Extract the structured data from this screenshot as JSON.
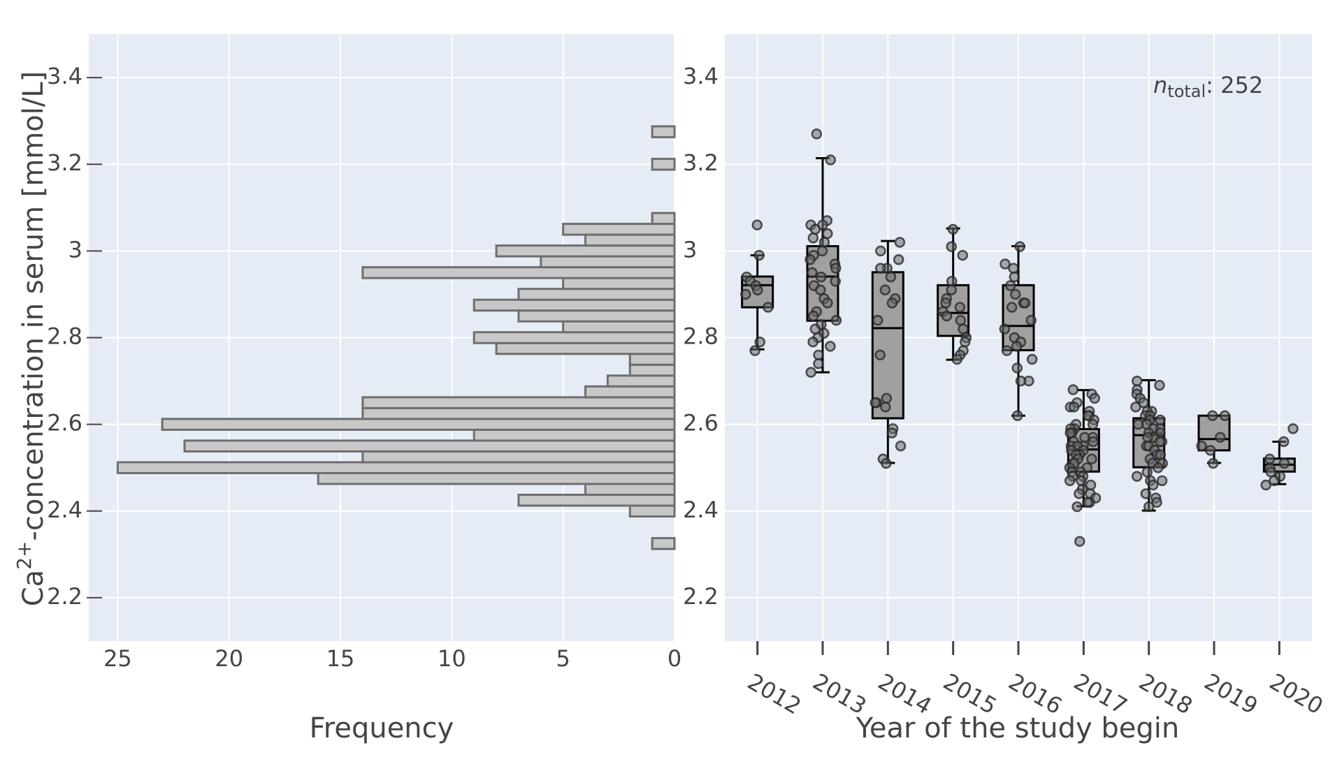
{
  "chart_data": [
    {
      "type": "histogram",
      "orientation": "horizontal",
      "x_label": "Frequency",
      "y_label": {
        "base": "Ca",
        "superscript": "2+",
        "rest": "-concentration in serum [mmol/L]"
      },
      "bins": [
        2.3125,
        2.3375,
        2.3625,
        2.3875,
        2.4125,
        2.4375,
        2.4625,
        2.4875,
        2.5125,
        2.5375,
        2.5625,
        2.5875,
        2.6125,
        2.6375,
        2.6625,
        2.6875,
        2.7125,
        2.7375,
        2.7625,
        2.7875,
        2.8125,
        2.8375,
        2.8625,
        2.8875,
        2.9125,
        2.9375,
        2.9625,
        2.9875,
        3.0125,
        3.0375,
        3.0625,
        3.0875,
        3.1125,
        3.1375,
        3.1625,
        3.1875,
        3.2125,
        3.2375,
        3.2625,
        3.2875
      ],
      "counts": [
        1,
        0,
        0,
        2,
        7,
        4,
        16,
        25,
        14,
        22,
        9,
        23,
        14,
        14,
        4,
        3,
        2,
        2,
        8,
        9,
        5,
        7,
        9,
        7,
        5,
        14,
        6,
        8,
        4,
        5,
        1,
        0,
        0,
        0,
        0,
        1,
        0,
        0,
        1
      ],
      "color": "#c8c8c8",
      "edge_color": "#6e6e6e",
      "xlim": [
        26.3,
        0
      ],
      "xticks": [
        25,
        20,
        15,
        10,
        5,
        0
      ],
      "ylim": [
        2.1,
        3.5
      ],
      "yticks": [
        2.2,
        2.4,
        2.6,
        2.8,
        3,
        3.2,
        3.4
      ],
      "grid": true
    },
    {
      "type": "box",
      "x_label": "Year of the study begin",
      "annotation": {
        "symbol": "n",
        "subscript": "total",
        "text": ": 252"
      },
      "categories": [
        "2012",
        "2013",
        "2014",
        "2015",
        "2016",
        "2017",
        "2018",
        "2019",
        "2020"
      ],
      "color": "#a0a0a0",
      "boxes": [
        {
          "q1": 2.87,
          "median": 2.921,
          "q3": 2.941,
          "whisker_low": 2.773,
          "whisker_high": 2.99,
          "points": [
            3.06,
            2.99,
            2.94,
            2.93,
            2.92,
            2.91,
            2.9,
            2.87,
            2.79,
            2.77
          ]
        },
        {
          "q1": 2.839,
          "median": 2.941,
          "q3": 3.011,
          "whisker_low": 2.72,
          "whisker_high": 3.214,
          "points": [
            3.27,
            3.21,
            3.07,
            3.06,
            3.06,
            3.05,
            3.04,
            3.03,
            3.02,
            3,
            2.99,
            2.98,
            2.97,
            2.96,
            2.95,
            2.94,
            2.93,
            2.92,
            2.91,
            2.89,
            2.88,
            2.86,
            2.85,
            2.84,
            2.83,
            2.82,
            2.81,
            2.8,
            2.79,
            2.78,
            2.76,
            2.74,
            2.72
          ]
        },
        {
          "q1": 2.614,
          "median": 2.822,
          "q3": 2.951,
          "whisker_low": 2.511,
          "whisker_high": 3.023,
          "points": [
            3.02,
            3,
            2.98,
            2.96,
            2.96,
            2.94,
            2.91,
            2.89,
            2.88,
            2.84,
            2.76,
            2.66,
            2.65,
            2.65,
            2.64,
            2.59,
            2.58,
            2.55,
            2.52,
            2.51
          ]
        },
        {
          "q1": 2.804,
          "median": 2.857,
          "q3": 2.921,
          "whisker_low": 2.749,
          "whisker_high": 3.052,
          "points": [
            3.05,
            3.01,
            2.99,
            2.93,
            2.91,
            2.89,
            2.88,
            2.87,
            2.86,
            2.85,
            2.84,
            2.82,
            2.8,
            2.79,
            2.77,
            2.76,
            2.75
          ]
        },
        {
          "q1": 2.771,
          "median": 2.827,
          "q3": 2.921,
          "whisker_low": 2.62,
          "whisker_high": 3.011,
          "points": [
            3.01,
            2.97,
            2.96,
            2.94,
            2.92,
            2.9,
            2.88,
            2.88,
            2.87,
            2.84,
            2.82,
            2.8,
            2.79,
            2.78,
            2.77,
            2.75,
            2.73,
            2.7,
            2.7,
            2.62
          ]
        },
        {
          "q1": 2.491,
          "median": 2.542,
          "q3": 2.589,
          "whisker_low": 2.411,
          "whisker_high": 2.679,
          "points": [
            2.68,
            2.67,
            2.66,
            2.65,
            2.64,
            2.64,
            2.63,
            2.62,
            2.62,
            2.61,
            2.6,
            2.6,
            2.59,
            2.59,
            2.58,
            2.58,
            2.57,
            2.57,
            2.56,
            2.56,
            2.55,
            2.55,
            2.55,
            2.54,
            2.54,
            2.53,
            2.53,
            2.52,
            2.52,
            2.51,
            2.51,
            2.5,
            2.5,
            2.49,
            2.49,
            2.48,
            2.48,
            2.47,
            2.47,
            2.46,
            2.45,
            2.44,
            2.44,
            2.43,
            2.42,
            2.42,
            2.41,
            2.33
          ]
        },
        {
          "q1": 2.501,
          "median": 2.575,
          "q3": 2.614,
          "whisker_low": 2.401,
          "whisker_high": 2.702,
          "points": [
            2.7,
            2.69,
            2.68,
            2.67,
            2.66,
            2.65,
            2.64,
            2.63,
            2.63,
            2.62,
            2.62,
            2.61,
            2.61,
            2.6,
            2.6,
            2.59,
            2.59,
            2.58,
            2.58,
            2.57,
            2.57,
            2.56,
            2.56,
            2.55,
            2.55,
            2.54,
            2.53,
            2.53,
            2.52,
            2.51,
            2.51,
            2.5,
            2.49,
            2.48,
            2.47,
            2.47,
            2.46,
            2.44,
            2.43,
            2.42,
            2.41
          ]
        },
        {
          "q1": 2.54,
          "median": 2.566,
          "q3": 2.62,
          "whisker_low": 2.511,
          "whisker_high": 2.62,
          "points": [
            2.62,
            2.62,
            2.57,
            2.55,
            2.54,
            2.51
          ]
        },
        {
          "q1": 2.491,
          "median": 2.507,
          "q3": 2.521,
          "whisker_low": 2.462,
          "whisker_high": 2.56,
          "points": [
            2.59,
            2.56,
            2.52,
            2.51,
            2.5,
            2.49,
            2.48,
            2.47,
            2.46
          ]
        }
      ],
      "ylim": [
        2.1,
        3.5
      ],
      "yticks": [
        2.2,
        2.4,
        2.6,
        2.8,
        3,
        3.2,
        3.4
      ],
      "grid": true
    }
  ]
}
